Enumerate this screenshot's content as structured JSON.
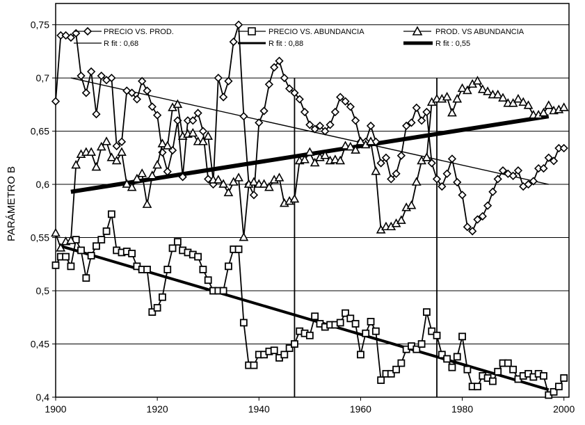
{
  "chart_data": {
    "type": "line",
    "title": "",
    "xlabel": "",
    "ylabel": "PARÁMETRO B",
    "xlim": [
      1900,
      2001
    ],
    "ylim": [
      0.4,
      0.77
    ],
    "x_ticks": [
      1900,
      1920,
      1940,
      1960,
      1980,
      2000
    ],
    "y_ticks": [
      "0,4",
      "0,45",
      "0,5",
      "0,55",
      "0,6",
      "0,65",
      "0,7",
      "0,75"
    ],
    "y_tick_values": [
      0.4,
      0.45,
      0.5,
      0.55,
      0.6,
      0.65,
      0.7,
      0.75
    ],
    "grid": "horizontal",
    "legend_position": "top",
    "series": [
      {
        "name": "PRECIO VS. PROD.",
        "marker": "diamond",
        "x": [
          1900,
          1901,
          1902,
          1903,
          1904,
          1905,
          1906,
          1907,
          1908,
          1909,
          1910,
          1911,
          1912,
          1913,
          1914,
          1915,
          1916,
          1917,
          1918,
          1919,
          1920,
          1921,
          1922,
          1923,
          1924,
          1925,
          1926,
          1927,
          1928,
          1929,
          1930,
          1931,
          1932,
          1933,
          1934,
          1935,
          1936,
          1937,
          1938,
          1939,
          1940,
          1941,
          1942,
          1943,
          1944,
          1945,
          1946,
          1947,
          1948,
          1949,
          1950,
          1951,
          1952,
          1953,
          1954,
          1955,
          1956,
          1957,
          1958,
          1959,
          1960,
          1961,
          1962,
          1963,
          1964,
          1965,
          1966,
          1967,
          1968,
          1969,
          1970,
          1971,
          1972,
          1973,
          1974,
          1975,
          1976,
          1977,
          1978,
          1979,
          1980,
          1981,
          1982,
          1983,
          1984,
          1985,
          1986,
          1987,
          1988,
          1989,
          1990,
          1991,
          1992,
          1993,
          1994,
          1995,
          1996,
          1997,
          1998,
          1999,
          2000
        ],
        "y": [
          0.678,
          0.74,
          0.74,
          0.738,
          0.742,
          0.702,
          0.686,
          0.706,
          0.666,
          0.702,
          0.698,
          0.7,
          0.636,
          0.64,
          0.688,
          0.686,
          0.68,
          0.697,
          0.688,
          0.673,
          0.665,
          0.63,
          0.612,
          0.632,
          0.66,
          0.607,
          0.66,
          0.66,
          0.667,
          0.65,
          0.605,
          0.6,
          0.7,
          0.682,
          0.697,
          0.734,
          0.75,
          0.664,
          0.6,
          0.59,
          0.658,
          0.669,
          0.694,
          0.71,
          0.716,
          0.7,
          0.69,
          0.686,
          0.68,
          0.668,
          0.656,
          0.652,
          0.655,
          0.65,
          0.656,
          0.668,
          0.682,
          0.678,
          0.673,
          0.66,
          0.64,
          0.64,
          0.655,
          0.64,
          0.62,
          0.625,
          0.605,
          0.61,
          0.627,
          0.655,
          0.658,
          0.672,
          0.66,
          0.668,
          0.62,
          0.605,
          0.598,
          0.61,
          0.624,
          0.602,
          0.59,
          0.56,
          0.556,
          0.567,
          0.57,
          0.58,
          0.593,
          0.605,
          0.613,
          0.61,
          0.608,
          0.613,
          0.598,
          0.6,
          0.603,
          0.615,
          0.615,
          0.625,
          0.622,
          0.634,
          0.634
        ]
      },
      {
        "name": "PRECIO VS. ABUNDANCIA",
        "marker": "square",
        "x": [
          1900,
          1901,
          1902,
          1903,
          1904,
          1905,
          1906,
          1907,
          1908,
          1909,
          1910,
          1911,
          1912,
          1913,
          1914,
          1915,
          1916,
          1917,
          1918,
          1919,
          1920,
          1921,
          1922,
          1923,
          1924,
          1925,
          1926,
          1927,
          1928,
          1929,
          1930,
          1931,
          1932,
          1933,
          1934,
          1935,
          1936,
          1937,
          1938,
          1939,
          1940,
          1941,
          1942,
          1943,
          1944,
          1945,
          1946,
          1947,
          1948,
          1949,
          1950,
          1951,
          1952,
          1953,
          1954,
          1955,
          1956,
          1957,
          1958,
          1959,
          1960,
          1961,
          1962,
          1963,
          1964,
          1965,
          1966,
          1967,
          1968,
          1969,
          1970,
          1971,
          1972,
          1973,
          1974,
          1975,
          1976,
          1977,
          1978,
          1979,
          1980,
          1981,
          1982,
          1983,
          1984,
          1985,
          1986,
          1987,
          1988,
          1989,
          1990,
          1991,
          1992,
          1993,
          1994,
          1995,
          1996,
          1997,
          1998,
          1999,
          2000
        ],
        "y": [
          0.524,
          0.532,
          0.532,
          0.523,
          0.548,
          0.538,
          0.512,
          0.533,
          0.542,
          0.548,
          0.556,
          0.572,
          0.538,
          0.536,
          0.537,
          0.535,
          0.523,
          0.52,
          0.52,
          0.48,
          0.484,
          0.494,
          0.52,
          0.54,
          0.546,
          0.538,
          0.536,
          0.534,
          0.532,
          0.52,
          0.51,
          0.5,
          0.5,
          0.5,
          0.523,
          0.539,
          0.539,
          0.47,
          0.43,
          0.43,
          0.44,
          0.44,
          0.443,
          0.444,
          0.437,
          0.44,
          0.446,
          0.45,
          0.462,
          0.46,
          0.458,
          0.476,
          0.469,
          0.466,
          0.468,
          0.468,
          0.47,
          0.479,
          0.474,
          0.469,
          0.44,
          0.46,
          0.471,
          0.462,
          0.416,
          0.422,
          0.422,
          0.426,
          0.432,
          0.445,
          0.448,
          0.445,
          0.45,
          0.48,
          0.462,
          0.458,
          0.44,
          0.436,
          0.428,
          0.438,
          0.457,
          0.426,
          0.41,
          0.41,
          0.42,
          0.418,
          0.415,
          0.424,
          0.432,
          0.432,
          0.426,
          0.417,
          0.42,
          0.422,
          0.419,
          0.422,
          0.42,
          0.402,
          0.405,
          0.41,
          0.418
        ]
      },
      {
        "name": "PROD. VS ABUNDANCIA",
        "marker": "triangle",
        "x": [
          1900,
          1901,
          1902,
          1903,
          1904,
          1905,
          1906,
          1907,
          1908,
          1909,
          1910,
          1911,
          1912,
          1913,
          1914,
          1915,
          1916,
          1917,
          1918,
          1919,
          1920,
          1921,
          1922,
          1923,
          1924,
          1925,
          1926,
          1927,
          1928,
          1929,
          1930,
          1931,
          1932,
          1933,
          1934,
          1935,
          1936,
          1937,
          1938,
          1939,
          1940,
          1941,
          1942,
          1943,
          1944,
          1945,
          1946,
          1947,
          1948,
          1949,
          1950,
          1951,
          1952,
          1953,
          1954,
          1955,
          1956,
          1957,
          1958,
          1959,
          1960,
          1961,
          1962,
          1963,
          1964,
          1965,
          1966,
          1967,
          1968,
          1969,
          1970,
          1971,
          1972,
          1973,
          1974,
          1975,
          1976,
          1977,
          1978,
          1979,
          1980,
          1981,
          1982,
          1983,
          1984,
          1985,
          1986,
          1987,
          1988,
          1989,
          1990,
          1991,
          1992,
          1993,
          1994,
          1995,
          1996,
          1997,
          1998,
          1999,
          2000
        ],
        "y": [
          0.554,
          0.54,
          0.546,
          0.547,
          0.618,
          0.628,
          0.63,
          0.63,
          0.616,
          0.635,
          0.64,
          0.625,
          0.622,
          0.63,
          0.6,
          0.597,
          0.605,
          0.61,
          0.581,
          0.608,
          0.618,
          0.638,
          0.636,
          0.672,
          0.675,
          0.645,
          0.647,
          0.648,
          0.64,
          0.64,
          0.645,
          0.604,
          0.604,
          0.6,
          0.592,
          0.602,
          0.606,
          0.55,
          0.6,
          0.602,
          0.6,
          0.6,
          0.597,
          0.604,
          0.606,
          0.582,
          0.584,
          0.586,
          0.622,
          0.623,
          0.63,
          0.62,
          0.625,
          0.627,
          0.622,
          0.623,
          0.622,
          0.636,
          0.635,
          0.632,
          0.64,
          0.637,
          0.64,
          0.612,
          0.557,
          0.56,
          0.56,
          0.563,
          0.566,
          0.578,
          0.58,
          0.602,
          0.622,
          0.625,
          0.677,
          0.68,
          0.68,
          0.682,
          0.667,
          0.68,
          0.69,
          0.688,
          0.694,
          0.697,
          0.689,
          0.687,
          0.684,
          0.684,
          0.681,
          0.676,
          0.676,
          0.68,
          0.677,
          0.674,
          0.665,
          0.665,
          0.667,
          0.674,
          0.669,
          0.67,
          0.672
        ]
      }
    ],
    "trendlines": [
      {
        "name": "R fit : 0,68",
        "x": [
          1903,
          1997
        ],
        "y": [
          0.7,
          0.6
        ],
        "weight": "thin"
      },
      {
        "name": "R fit : 0,88",
        "x": [
          1901,
          1997
        ],
        "y": [
          0.542,
          0.407
        ],
        "weight": "medium"
      },
      {
        "name": "R fit : 0,55",
        "x": [
          1903,
          1997
        ],
        "y": [
          0.593,
          0.664
        ],
        "weight": "thick"
      }
    ],
    "vertical_lines_x": [
      1947,
      1975
    ]
  }
}
